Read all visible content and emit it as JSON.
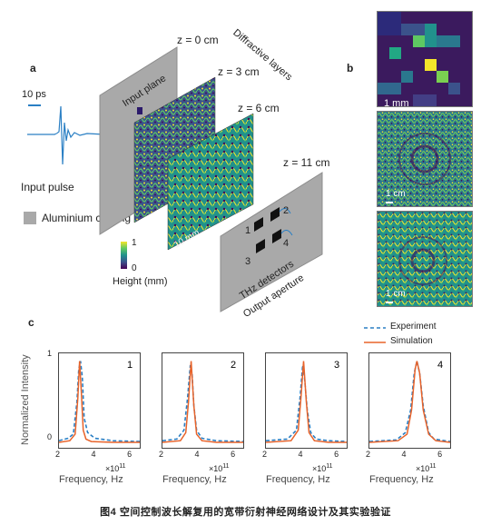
{
  "panel_a": {
    "letter": "a",
    "pulse_scale": "10 ps",
    "input_pulse": "Input pulse",
    "coating": "Aluminium coating",
    "input_plane": "Input plane",
    "layers_title": "Diffractive layers",
    "z0": "z = 0 cm",
    "z3": "z = 3 cm",
    "z6": "z = 6 cm",
    "z11": "z = 11 cm",
    "layer_scale": "10 mm",
    "detectors": "THz detectors",
    "output_aperture": "Output aperture",
    "det1": "1",
    "det2": "2",
    "det3": "3",
    "det4": "4",
    "colorbar_max": "1",
    "colorbar_min": "0",
    "colorbar_label": "Height (mm)",
    "colors": {
      "plane": "#a9a9a9",
      "pulse": "#2a7fc4"
    }
  },
  "panel_b": {
    "letter": "b",
    "scale_top": "1 mm",
    "scale_mid": "1 cm",
    "scale_bot": "1 cm"
  },
  "panel_c": {
    "letter": "c",
    "legend_experiment": "Experiment",
    "legend_simulation": "Simulation",
    "ylabel": "Normalized Intensity",
    "y_tick_max": "1",
    "y_tick_min": "0",
    "xlabel": "Frequency, Hz",
    "x_mult": "×10",
    "x_mult_exp": "11",
    "x_ticks": [
      "2",
      "4",
      "6"
    ],
    "colors": {
      "experiment": "#2a7fc4",
      "simulation": "#e8632a"
    }
  },
  "chart_data": [
    {
      "type": "line",
      "title": "1",
      "x_unit_scale": "x10^11 Hz",
      "xlim": [
        2,
        6.5
      ],
      "ylim": [
        0,
        1.05
      ],
      "series": [
        {
          "name": "Experiment",
          "x": [
            2.0,
            2.5,
            2.8,
            3.0,
            3.1,
            3.2,
            3.3,
            3.4,
            3.6,
            4.0,
            5.0,
            6.5
          ],
          "y": [
            0.02,
            0.05,
            0.1,
            0.5,
            0.9,
            1.0,
            0.8,
            0.3,
            0.12,
            0.05,
            0.02,
            0.01
          ]
        },
        {
          "name": "Simulation",
          "x": [
            2.0,
            2.6,
            2.9,
            3.05,
            3.15,
            3.25,
            3.35,
            3.5,
            3.8,
            5.0,
            6.5
          ],
          "y": [
            0.0,
            0.02,
            0.1,
            0.55,
            1.0,
            0.6,
            0.15,
            0.04,
            0.01,
            0.0,
            0.0
          ]
        }
      ]
    },
    {
      "type": "line",
      "title": "2",
      "x_unit_scale": "x10^11 Hz",
      "xlim": [
        2,
        6.5
      ],
      "ylim": [
        0,
        1.05
      ],
      "series": [
        {
          "name": "Experiment",
          "x": [
            2.0,
            2.8,
            3.2,
            3.4,
            3.55,
            3.65,
            3.75,
            3.9,
            4.2,
            5.0,
            6.5
          ],
          "y": [
            0.02,
            0.04,
            0.15,
            0.55,
            0.95,
            0.85,
            0.45,
            0.15,
            0.05,
            0.02,
            0.01
          ]
        },
        {
          "name": "Simulation",
          "x": [
            2.0,
            3.0,
            3.3,
            3.45,
            3.6,
            3.75,
            3.9,
            4.2,
            5.0,
            6.5
          ],
          "y": [
            0.0,
            0.02,
            0.12,
            0.5,
            1.0,
            0.45,
            0.1,
            0.02,
            0.0,
            0.0
          ]
        }
      ]
    },
    {
      "type": "line",
      "title": "3",
      "x_unit_scale": "x10^11 Hz",
      "xlim": [
        2,
        6.5
      ],
      "ylim": [
        0,
        1.05
      ],
      "series": [
        {
          "name": "Experiment",
          "x": [
            2.0,
            3.2,
            3.7,
            3.9,
            4.05,
            4.15,
            4.3,
            4.5,
            4.8,
            5.5,
            6.5
          ],
          "y": [
            0.02,
            0.04,
            0.15,
            0.55,
            0.95,
            0.8,
            0.4,
            0.12,
            0.04,
            0.02,
            0.01
          ]
        },
        {
          "name": "Simulation",
          "x": [
            2.0,
            3.4,
            3.8,
            3.95,
            4.1,
            4.25,
            4.4,
            4.7,
            5.5,
            6.5
          ],
          "y": [
            0.0,
            0.02,
            0.15,
            0.55,
            1.0,
            0.5,
            0.12,
            0.02,
            0.0,
            0.0
          ]
        }
      ]
    },
    {
      "type": "line",
      "title": "4",
      "x_unit_scale": "x10^11 Hz",
      "xlim": [
        2,
        6.5
      ],
      "ylim": [
        0,
        1.05
      ],
      "series": [
        {
          "name": "Experiment",
          "x": [
            2.0,
            3.5,
            4.0,
            4.3,
            4.5,
            4.65,
            4.8,
            5.0,
            5.3,
            5.6,
            6.5
          ],
          "y": [
            0.01,
            0.03,
            0.12,
            0.4,
            0.85,
            1.0,
            0.85,
            0.45,
            0.12,
            0.04,
            0.01
          ]
        },
        {
          "name": "Simulation",
          "x": [
            2.0,
            3.6,
            4.1,
            4.35,
            4.55,
            4.65,
            4.8,
            5.0,
            5.3,
            5.7,
            6.5
          ],
          "y": [
            0.0,
            0.02,
            0.1,
            0.4,
            0.9,
            1.0,
            0.85,
            0.4,
            0.1,
            0.02,
            0.0
          ]
        }
      ]
    }
  ],
  "caption": "图4 空间控制波长解复用的宽带衍射神经网络设计及其实验验证"
}
